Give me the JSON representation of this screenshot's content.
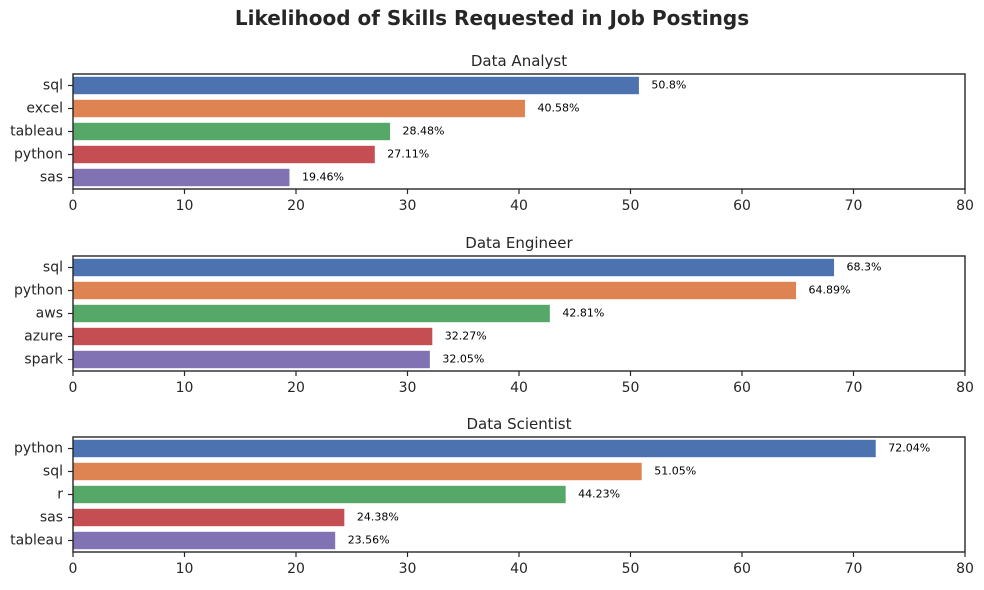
{
  "figure": {
    "title": "Likelihood of Skills Requested in Job Postings"
  },
  "colors": [
    "#4c72b0",
    "#dd8452",
    "#55a868",
    "#c44e52",
    "#8172b3"
  ],
  "chart_data": [
    {
      "type": "bar",
      "orientation": "horizontal",
      "title": "Data Analyst",
      "categories": [
        "sql",
        "excel",
        "tableau",
        "python",
        "sas"
      ],
      "values": [
        50.8,
        40.58,
        28.48,
        27.11,
        19.46
      ],
      "labels": [
        "50.8%",
        "40.58%",
        "28.48%",
        "27.11%",
        "19.46%"
      ],
      "xlim": [
        0,
        80
      ],
      "xticks": [
        "0",
        "10",
        "20",
        "30",
        "40",
        "50",
        "60",
        "70",
        "80"
      ],
      "xlabel": "",
      "ylabel": ""
    },
    {
      "type": "bar",
      "orientation": "horizontal",
      "title": "Data Engineer",
      "categories": [
        "sql",
        "python",
        "aws",
        "azure",
        "spark"
      ],
      "values": [
        68.3,
        64.89,
        42.81,
        32.27,
        32.05
      ],
      "labels": [
        "68.3%",
        "64.89%",
        "42.81%",
        "32.27%",
        "32.05%"
      ],
      "xlim": [
        0,
        80
      ],
      "xticks": [
        "0",
        "10",
        "20",
        "30",
        "40",
        "50",
        "60",
        "70",
        "80"
      ],
      "xlabel": "",
      "ylabel": ""
    },
    {
      "type": "bar",
      "orientation": "horizontal",
      "title": "Data Scientist",
      "categories": [
        "python",
        "sql",
        "r",
        "sas",
        "tableau"
      ],
      "values": [
        72.04,
        51.05,
        44.23,
        24.38,
        23.56
      ],
      "labels": [
        "72.04%",
        "51.05%",
        "44.23%",
        "24.38%",
        "23.56%"
      ],
      "xlim": [
        0,
        80
      ],
      "xticks": [
        "0",
        "10",
        "20",
        "30",
        "40",
        "50",
        "60",
        "70",
        "80"
      ],
      "xlabel": "",
      "ylabel": ""
    }
  ]
}
